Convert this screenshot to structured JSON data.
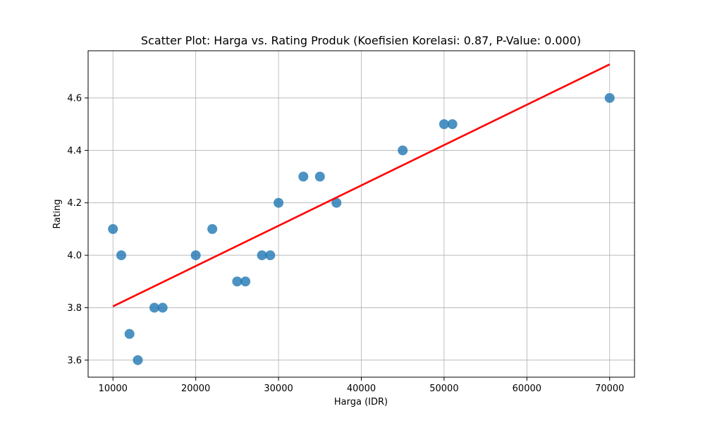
{
  "chart_data": {
    "type": "scatter",
    "title": "Scatter Plot: Harga vs. Rating Produk (Koefisien Korelasi: 0.87, P-Value: 0.000)",
    "xlabel": "Harga (IDR)",
    "ylabel": "Rating",
    "xlim": [
      7000,
      73000
    ],
    "ylim": [
      3.535,
      4.78
    ],
    "xticks": [
      10000,
      20000,
      30000,
      40000,
      50000,
      60000,
      70000
    ],
    "yticks": [
      3.6,
      3.8,
      4.0,
      4.2,
      4.4,
      4.6
    ],
    "xtick_labels": [
      "10000",
      "20000",
      "30000",
      "40000",
      "50000",
      "60000",
      "70000"
    ],
    "ytick_labels": [
      "3.6",
      "3.8",
      "4.0",
      "4.2",
      "4.4",
      "4.6"
    ],
    "grid": true,
    "series": [
      {
        "type": "scatter",
        "color": "#1f77b4",
        "points": [
          {
            "x": 10000,
            "y": 4.1
          },
          {
            "x": 11000,
            "y": 4.0
          },
          {
            "x": 12000,
            "y": 3.7
          },
          {
            "x": 13000,
            "y": 3.6
          },
          {
            "x": 15000,
            "y": 3.8
          },
          {
            "x": 16000,
            "y": 3.8
          },
          {
            "x": 20000,
            "y": 4.0
          },
          {
            "x": 22000,
            "y": 4.1
          },
          {
            "x": 25000,
            "y": 3.9
          },
          {
            "x": 26000,
            "y": 3.9
          },
          {
            "x": 28000,
            "y": 4.0
          },
          {
            "x": 29000,
            "y": 4.0
          },
          {
            "x": 30000,
            "y": 4.2
          },
          {
            "x": 33000,
            "y": 4.3
          },
          {
            "x": 35000,
            "y": 4.3
          },
          {
            "x": 37000,
            "y": 4.2
          },
          {
            "x": 45000,
            "y": 4.4
          },
          {
            "x": 50000,
            "y": 4.5
          },
          {
            "x": 51000,
            "y": 4.5
          },
          {
            "x": 70000,
            "y": 4.6
          }
        ]
      },
      {
        "type": "line",
        "color": "#ff0000",
        "points": [
          {
            "x": 10000,
            "y": 3.805
          },
          {
            "x": 70000,
            "y": 4.728
          }
        ]
      }
    ]
  }
}
